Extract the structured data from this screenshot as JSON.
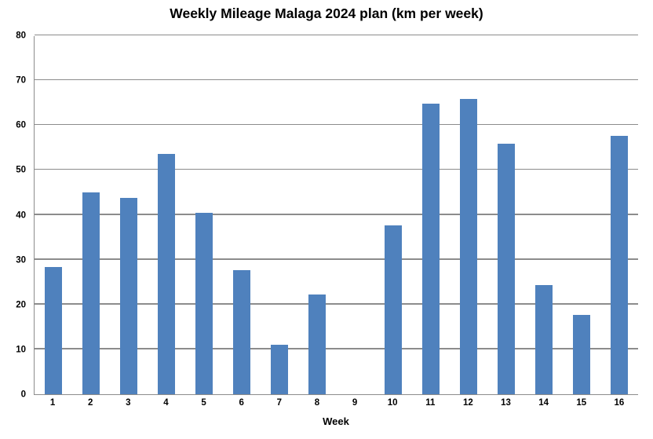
{
  "chart_data": {
    "type": "bar",
    "title": "Weekly Mileage Malaga 2024 plan (km per week)",
    "xlabel": "Week",
    "ylabel": "",
    "categories": [
      "1",
      "2",
      "3",
      "4",
      "5",
      "6",
      "7",
      "8",
      "9",
      "10",
      "11",
      "12",
      "13",
      "14",
      "15",
      "16"
    ],
    "values": [
      28.3,
      45.0,
      43.7,
      53.6,
      40.4,
      27.6,
      11.1,
      22.3,
      0,
      37.7,
      64.8,
      65.8,
      55.9,
      24.3,
      17.6,
      57.6
    ],
    "ylim": [
      0,
      80
    ],
    "ytick_step": 10,
    "yticks": [
      0,
      10,
      20,
      30,
      40,
      50,
      60,
      70,
      80
    ],
    "grid": true,
    "legend": false,
    "bar_color": "#4F81BD",
    "grid_color": "#8C8C8C",
    "axis_color": "#8C8C8C",
    "text_color": "#000000",
    "background_color": "#FFFFFF"
  }
}
